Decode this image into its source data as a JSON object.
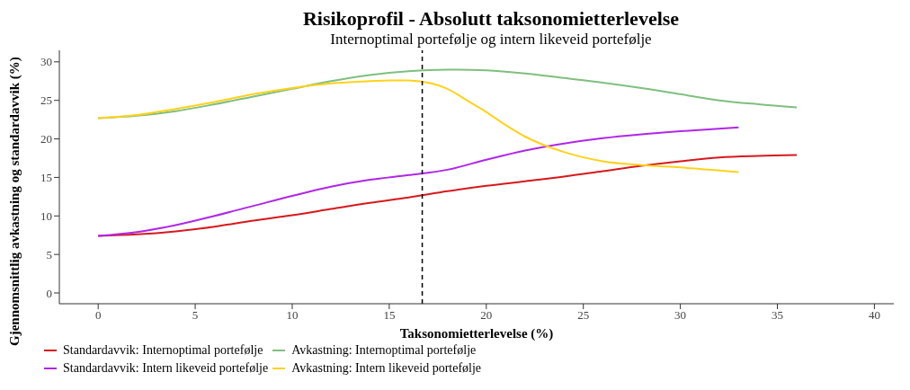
{
  "chart_data": {
    "type": "line",
    "title": "Risikoprofil - Absolutt taksonomietterlevelse",
    "subtitle": "Internoptimal portefølje og intern likeveid portefølje",
    "xlabel": "Taksonomietterlevelse (%)",
    "ylabel": "Gjennomsnittlig avkastning og standardavvik (%)",
    "xlim": [
      -2,
      41
    ],
    "xticks": [
      0,
      5,
      10,
      15,
      20,
      25,
      30,
      35,
      40
    ],
    "ylim": [
      -1.4,
      31.5
    ],
    "yticks": [
      0,
      5,
      10,
      15,
      20,
      25,
      30
    ],
    "grid": false,
    "legend": "bottom left",
    "marker": "none",
    "line_style": "solid",
    "ref_lines": [
      {
        "axis": "x",
        "value": 16.7,
        "color": "#000000",
        "line_style": "dashed"
      }
    ],
    "series": [
      {
        "name": "Standardavvik: Internoptimal portefølje",
        "color": "#d7191c",
        "x": [
          0,
          2,
          4,
          6,
          8,
          10,
          12,
          14,
          16,
          18,
          20,
          22,
          24,
          26,
          28,
          30,
          32,
          34,
          36
        ],
        "values": [
          7.4,
          7.6,
          8.0,
          8.6,
          9.4,
          10.1,
          10.9,
          11.7,
          12.4,
          13.2,
          13.9,
          14.5,
          15.1,
          15.8,
          16.5,
          17.1,
          17.6,
          17.8,
          17.9
        ]
      },
      {
        "name": "Avkastning: Internoptimal portefølje",
        "color": "#7fbf7f",
        "x": [
          0,
          2,
          4,
          6,
          8,
          10,
          12,
          14,
          16,
          18,
          20,
          22,
          24,
          26,
          28,
          30,
          32,
          34,
          36
        ],
        "values": [
          22.7,
          23.0,
          23.6,
          24.5,
          25.5,
          26.5,
          27.5,
          28.3,
          28.8,
          29.0,
          28.9,
          28.5,
          27.9,
          27.3,
          26.6,
          25.8,
          25.0,
          24.5,
          24.1
        ]
      },
      {
        "name": "Standardavvik: Intern likeveid portefølje",
        "color": "#b026e6",
        "x": [
          0,
          2,
          4,
          6,
          8,
          10,
          12,
          14,
          16,
          18,
          20,
          22,
          24,
          26,
          28,
          30,
          33
        ],
        "values": [
          7.4,
          7.9,
          8.8,
          10.0,
          11.3,
          12.6,
          13.8,
          14.7,
          15.3,
          16.0,
          17.3,
          18.5,
          19.4,
          20.1,
          20.6,
          21.0,
          21.5
        ]
      },
      {
        "name": "Avkastning: Intern likeveid portefølje",
        "color": "#ffd21a",
        "x": [
          0,
          2,
          4,
          6,
          8,
          10,
          12,
          14,
          15,
          16,
          17,
          18,
          19,
          20,
          21,
          22,
          24,
          26,
          28,
          30,
          33
        ],
        "values": [
          22.7,
          23.1,
          23.9,
          24.8,
          25.8,
          26.6,
          27.2,
          27.5,
          27.6,
          27.6,
          27.3,
          26.5,
          25.0,
          23.5,
          21.8,
          20.3,
          18.3,
          17.1,
          16.6,
          16.3,
          15.7
        ]
      }
    ]
  }
}
